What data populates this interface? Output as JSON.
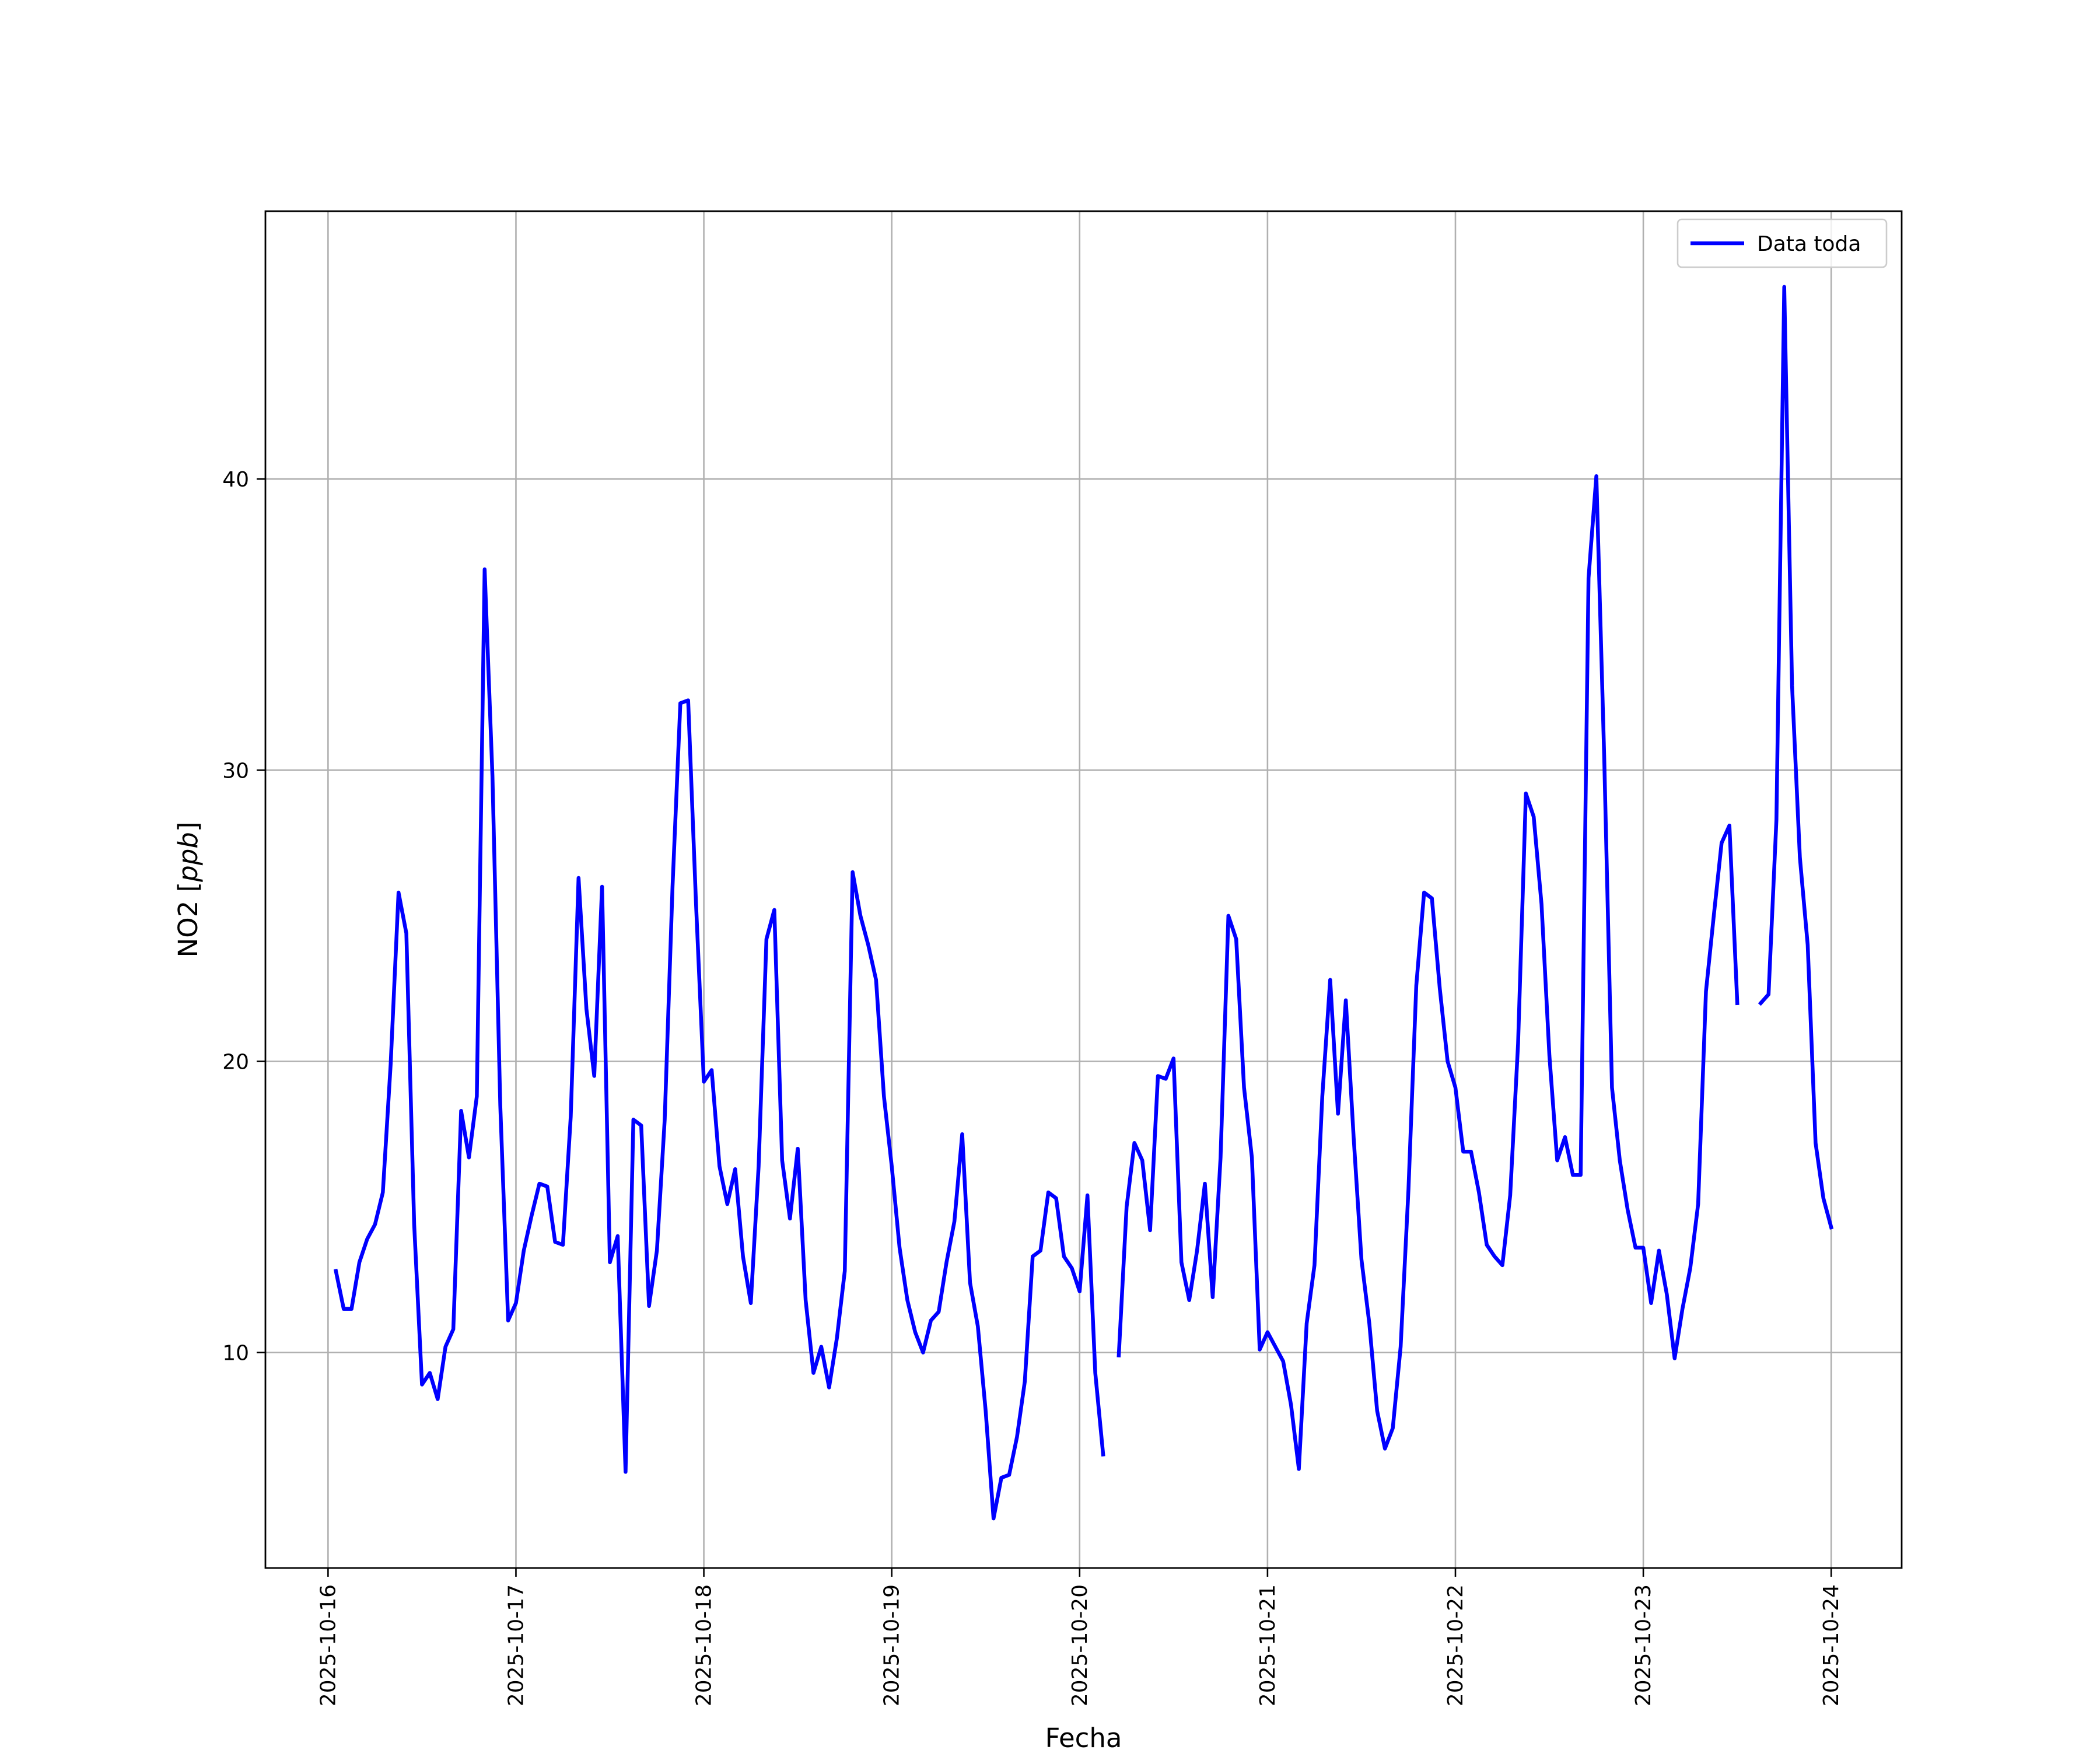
{
  "chart_data": {
    "type": "line",
    "xlabel": "Fecha",
    "ylabel_plain": "NO2 [",
    "ylabel_italic": "ppb",
    "ylabel_close": "]",
    "xlim": [
      "2025-10-15T16:00",
      "2025-10-24T09:00"
    ],
    "ylim": [
      2.6,
      49.2
    ],
    "x_ticks": [
      "2025-10-16",
      "2025-10-17",
      "2025-10-18",
      "2025-10-19",
      "2025-10-20",
      "2025-10-21",
      "2025-10-22",
      "2025-10-23",
      "2025-10-24"
    ],
    "y_ticks": [
      "10",
      "20",
      "30",
      "40"
    ],
    "y_tick_values": [
      10,
      20,
      30,
      40
    ],
    "grid": true,
    "legend_position": "upper right",
    "series": [
      {
        "name": "Data toda",
        "color": "#0000ff",
        "points": [
          [
            "2025-10-16T01:00",
            12.8
          ],
          [
            "2025-10-16T02:00",
            11.5
          ],
          [
            "2025-10-16T03:00",
            11.5
          ],
          [
            "2025-10-16T04:00",
            13.1
          ],
          [
            "2025-10-16T05:00",
            13.9
          ],
          [
            "2025-10-16T06:00",
            14.4
          ],
          [
            "2025-10-16T07:00",
            15.5
          ],
          [
            "2025-10-16T08:00",
            19.9
          ],
          [
            "2025-10-16T09:00",
            25.8
          ],
          [
            "2025-10-16T10:00",
            24.4
          ],
          [
            "2025-10-16T11:00",
            14.4
          ],
          [
            "2025-10-16T12:00",
            8.9
          ],
          [
            "2025-10-16T13:00",
            9.3
          ],
          [
            "2025-10-16T14:00",
            8.4
          ],
          [
            "2025-10-16T15:00",
            10.2
          ],
          [
            "2025-10-16T16:00",
            10.8
          ],
          [
            "2025-10-16T17:00",
            18.3
          ],
          [
            "2025-10-16T18:00",
            16.7
          ],
          [
            "2025-10-16T19:00",
            18.8
          ],
          [
            "2025-10-16T20:00",
            36.9
          ],
          [
            "2025-10-16T21:00",
            29.8
          ],
          [
            "2025-10-16T22:00",
            18.5
          ],
          [
            "2025-10-16T23:00",
            11.1
          ],
          [
            "2025-10-17T00:00",
            11.7
          ],
          [
            "2025-10-17T01:00",
            13.5
          ],
          [
            "2025-10-17T02:00",
            14.7
          ],
          [
            "2025-10-17T03:00",
            15.8
          ],
          [
            "2025-10-17T04:00",
            15.7
          ],
          [
            "2025-10-17T05:00",
            13.8
          ],
          [
            "2025-10-17T06:00",
            13.7
          ],
          [
            "2025-10-17T07:00",
            18.1
          ],
          [
            "2025-10-17T08:00",
            26.3
          ],
          [
            "2025-10-17T09:00",
            21.8
          ],
          [
            "2025-10-17T10:00",
            19.5
          ],
          [
            "2025-10-17T11:00",
            26.0
          ],
          [
            "2025-10-17T12:00",
            13.1
          ],
          [
            "2025-10-17T13:00",
            14.0
          ],
          [
            "2025-10-17T14:00",
            5.9
          ],
          [
            "2025-10-17T15:00",
            18.0
          ],
          [
            "2025-10-17T16:00",
            17.8
          ],
          [
            "2025-10-17T17:00",
            11.6
          ],
          [
            "2025-10-17T18:00",
            13.5
          ],
          [
            "2025-10-17T19:00",
            18.0
          ],
          [
            "2025-10-17T20:00",
            26.0
          ],
          [
            "2025-10-17T21:00",
            32.3
          ],
          [
            "2025-10-17T22:00",
            32.4
          ],
          [
            "2025-10-17T23:00",
            25.4
          ],
          [
            "2025-10-18T00:00",
            19.3
          ],
          [
            "2025-10-18T01:00",
            19.7
          ],
          [
            "2025-10-18T02:00",
            16.4
          ],
          [
            "2025-10-18T03:00",
            15.1
          ],
          [
            "2025-10-18T04:00",
            16.3
          ],
          [
            "2025-10-18T05:00",
            13.3
          ],
          [
            "2025-10-18T06:00",
            11.7
          ],
          [
            "2025-10-18T07:00",
            16.4
          ],
          [
            "2025-10-18T08:00",
            24.2
          ],
          [
            "2025-10-18T09:00",
            25.2
          ],
          [
            "2025-10-18T10:00",
            16.6
          ],
          [
            "2025-10-18T11:00",
            14.6
          ],
          [
            "2025-10-18T12:00",
            17.0
          ],
          [
            "2025-10-18T13:00",
            11.8
          ],
          [
            "2025-10-18T14:00",
            9.3
          ],
          [
            "2025-10-18T15:00",
            10.2
          ],
          [
            "2025-10-18T16:00",
            8.8
          ],
          [
            "2025-10-18T17:00",
            10.5
          ],
          [
            "2025-10-18T18:00",
            12.8
          ],
          [
            "2025-10-18T19:00",
            26.5
          ],
          [
            "2025-10-18T20:00",
            25.0
          ],
          [
            "2025-10-18T21:00",
            24.0
          ],
          [
            "2025-10-18T22:00",
            22.8
          ],
          [
            "2025-10-18T23:00",
            18.8
          ],
          [
            "2025-10-19T00:00",
            16.4
          ],
          [
            "2025-10-19T01:00",
            13.6
          ],
          [
            "2025-10-19T02:00",
            11.8
          ],
          [
            "2025-10-19T03:00",
            10.7
          ],
          [
            "2025-10-19T04:00",
            10.0
          ],
          [
            "2025-10-19T05:00",
            11.1
          ],
          [
            "2025-10-19T06:00",
            11.4
          ],
          [
            "2025-10-19T07:00",
            13.1
          ],
          [
            "2025-10-19T08:00",
            14.5
          ],
          [
            "2025-10-19T09:00",
            17.5
          ],
          [
            "2025-10-19T10:00",
            12.4
          ],
          [
            "2025-10-19T11:00",
            10.9
          ],
          [
            "2025-10-19T12:00",
            8.0
          ],
          [
            "2025-10-19T13:00",
            4.3
          ],
          [
            "2025-10-19T14:00",
            5.7
          ],
          [
            "2025-10-19T15:00",
            5.8
          ],
          [
            "2025-10-19T16:00",
            7.1
          ],
          [
            "2025-10-19T17:00",
            9.0
          ],
          [
            "2025-10-19T18:00",
            13.3
          ],
          [
            "2025-10-19T19:00",
            13.5
          ],
          [
            "2025-10-19T20:00",
            15.5
          ],
          [
            "2025-10-19T21:00",
            15.3
          ],
          [
            "2025-10-19T22:00",
            13.3
          ],
          [
            "2025-10-19T23:00",
            12.9
          ],
          [
            "2025-10-20T00:00",
            12.1
          ],
          [
            "2025-10-20T01:00",
            15.4
          ],
          [
            "2025-10-20T02:00",
            9.3
          ],
          [
            "2025-10-20T03:00",
            6.5
          ],
          null,
          [
            "2025-10-20T05:00",
            9.9
          ],
          [
            "2025-10-20T06:00",
            15.0
          ],
          [
            "2025-10-20T07:00",
            17.2
          ],
          [
            "2025-10-20T08:00",
            16.6
          ],
          [
            "2025-10-20T09:00",
            14.2
          ],
          [
            "2025-10-20T10:00",
            19.5
          ],
          [
            "2025-10-20T11:00",
            19.4
          ],
          [
            "2025-10-20T12:00",
            20.1
          ],
          [
            "2025-10-20T13:00",
            13.1
          ],
          [
            "2025-10-20T14:00",
            11.8
          ],
          [
            "2025-10-20T15:00",
            13.5
          ],
          [
            "2025-10-20T16:00",
            15.8
          ],
          [
            "2025-10-20T17:00",
            11.9
          ],
          [
            "2025-10-20T18:00",
            16.7
          ],
          [
            "2025-10-20T19:00",
            25.0
          ],
          [
            "2025-10-20T20:00",
            24.2
          ],
          [
            "2025-10-20T21:00",
            19.1
          ],
          [
            "2025-10-20T22:00",
            16.7
          ],
          [
            "2025-10-20T23:00",
            10.1
          ],
          [
            "2025-10-21T00:00",
            10.7
          ],
          [
            "2025-10-21T01:00",
            10.2
          ],
          [
            "2025-10-21T02:00",
            9.7
          ],
          [
            "2025-10-21T03:00",
            8.2
          ],
          [
            "2025-10-21T04:00",
            6.0
          ],
          [
            "2025-10-21T05:00",
            11.0
          ],
          [
            "2025-10-21T06:00",
            13.0
          ],
          [
            "2025-10-21T07:00",
            18.8
          ],
          [
            "2025-10-21T08:00",
            22.8
          ],
          [
            "2025-10-21T09:00",
            18.2
          ],
          [
            "2025-10-21T10:00",
            22.1
          ],
          [
            "2025-10-21T11:00",
            17.4
          ],
          [
            "2025-10-21T12:00",
            13.2
          ],
          [
            "2025-10-21T13:00",
            11.0
          ],
          [
            "2025-10-21T14:00",
            8.0
          ],
          [
            "2025-10-21T15:00",
            6.7
          ],
          [
            "2025-10-21T16:00",
            7.4
          ],
          [
            "2025-10-21T17:00",
            10.2
          ],
          [
            "2025-10-21T18:00",
            15.6
          ],
          [
            "2025-10-21T19:00",
            22.6
          ],
          [
            "2025-10-21T20:00",
            25.8
          ],
          [
            "2025-10-21T21:00",
            25.6
          ],
          [
            "2025-10-21T22:00",
            22.5
          ],
          [
            "2025-10-21T23:00",
            20.0
          ],
          [
            "2025-10-22T00:00",
            19.1
          ],
          [
            "2025-10-22T01:00",
            16.9
          ],
          [
            "2025-10-22T02:00",
            16.9
          ],
          [
            "2025-10-22T03:00",
            15.5
          ],
          [
            "2025-10-22T04:00",
            13.7
          ],
          [
            "2025-10-22T05:00",
            13.3
          ],
          [
            "2025-10-22T06:00",
            13.0
          ],
          [
            "2025-10-22T07:00",
            15.4
          ],
          [
            "2025-10-22T08:00",
            20.6
          ],
          [
            "2025-10-22T09:00",
            29.2
          ],
          [
            "2025-10-22T10:00",
            28.4
          ],
          [
            "2025-10-22T11:00",
            25.4
          ],
          [
            "2025-10-22T12:00",
            20.2
          ],
          [
            "2025-10-22T13:00",
            16.6
          ],
          [
            "2025-10-22T14:00",
            17.4
          ],
          [
            "2025-10-22T15:00",
            16.1
          ],
          [
            "2025-10-22T16:00",
            16.1
          ],
          [
            "2025-10-22T17:00",
            36.6
          ],
          [
            "2025-10-22T18:00",
            40.1
          ],
          [
            "2025-10-22T19:00",
            30.5
          ],
          [
            "2025-10-22T20:00",
            19.1
          ],
          [
            "2025-10-22T21:00",
            16.6
          ],
          [
            "2025-10-22T22:00",
            14.9
          ],
          [
            "2025-10-22T23:00",
            13.6
          ],
          [
            "2025-10-23T00:00",
            13.6
          ],
          [
            "2025-10-23T01:00",
            11.7
          ],
          [
            "2025-10-23T02:00",
            13.5
          ],
          [
            "2025-10-23T03:00",
            12.0
          ],
          [
            "2025-10-23T04:00",
            9.8
          ],
          [
            "2025-10-23T05:00",
            11.5
          ],
          [
            "2025-10-23T06:00",
            12.9
          ],
          [
            "2025-10-23T07:00",
            15.1
          ],
          [
            "2025-10-23T08:00",
            22.4
          ],
          [
            "2025-10-23T09:00",
            25.0
          ],
          [
            "2025-10-23T10:00",
            27.5
          ],
          [
            "2025-10-23T11:00",
            28.1
          ],
          [
            "2025-10-23T12:00",
            22.0
          ],
          null,
          [
            "2025-10-23T15:00",
            22.0
          ],
          [
            "2025-10-23T16:00",
            22.3
          ],
          [
            "2025-10-23T17:00",
            28.3
          ],
          [
            "2025-10-23T18:00",
            46.6
          ],
          [
            "2025-10-23T19:00",
            32.9
          ],
          [
            "2025-10-23T20:00",
            27.0
          ],
          [
            "2025-10-23T21:00",
            24.0
          ],
          [
            "2025-10-23T22:00",
            17.2
          ],
          [
            "2025-10-23T23:00",
            15.3
          ],
          [
            "2025-10-24T00:00",
            14.3
          ]
        ]
      }
    ]
  }
}
